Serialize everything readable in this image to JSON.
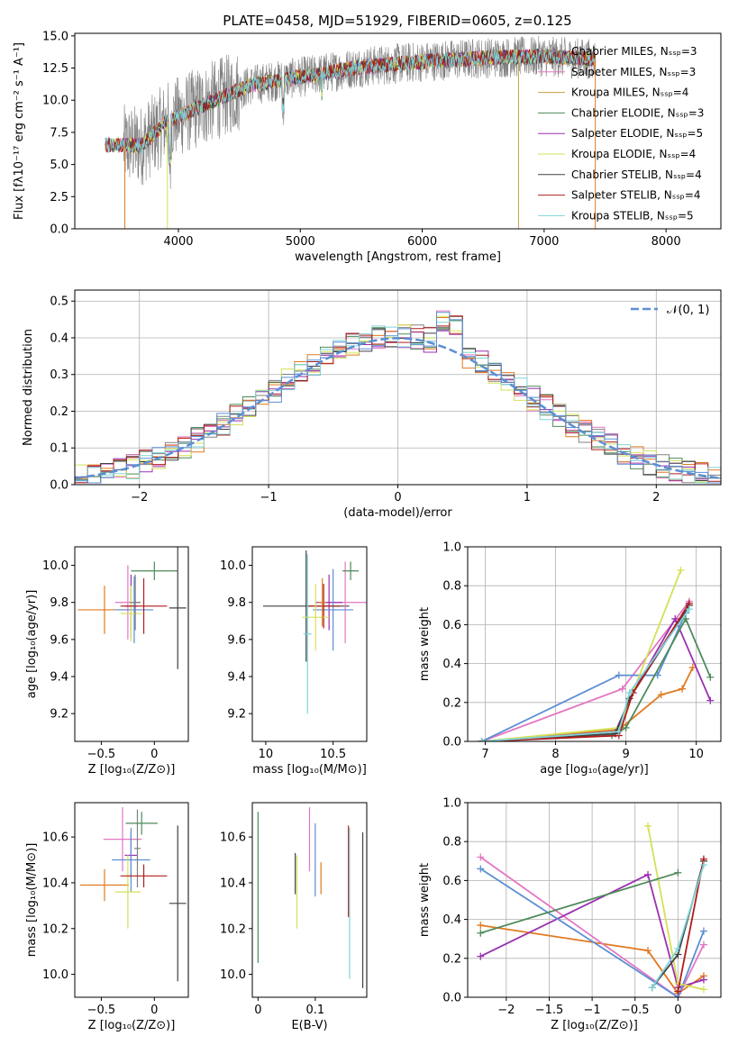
{
  "figure_title": "PLATE=0458, MJD=51929, FIBERID=0605, z=0.125",
  "chart_data": [
    {
      "type": "line",
      "panel": "spectrum",
      "xlabel": "wavelength [Angstrom, rest frame]",
      "ylabel": "Flux [fλ10⁻¹⁷ erg cm⁻² s⁻¹ A⁻¹]",
      "xlim": [
        3150,
        8450
      ],
      "ylim": [
        0,
        15.2
      ],
      "xticks": [
        4000,
        5000,
        6000,
        7000,
        8000
      ],
      "yticks": [
        0.0,
        2.5,
        5.0,
        7.5,
        10.0,
        12.5,
        15.0
      ],
      "legend_position": "right",
      "series": [
        {
          "name": "Chabrier MILES, Nₛₛₚ=3",
          "color": "#808080"
        },
        {
          "name": "Salpeter MILES, Nₛₛₚ=3",
          "color": "#e377c2"
        },
        {
          "name": "Kroupa MILES, Nₛₛₚ=4",
          "color": "#c8a040"
        },
        {
          "name": "Chabrier ELODIE, Nₛₛₚ=3",
          "color": "#4e8a5a"
        },
        {
          "name": "Salpeter ELODIE, Nₛₛₚ=5",
          "color": "#9b30b0"
        },
        {
          "name": "Kroupa ELODIE, Nₛₛₚ=4",
          "color": "#d4e157"
        },
        {
          "name": "Chabrier STELIB, Nₛₛₚ=4",
          "color": "#404040"
        },
        {
          "name": "Salpeter STELIB, Nₛₛₚ=4",
          "color": "#b01c1c"
        },
        {
          "name": "Kroupa STELIB, Nₛₛₚ=5",
          "color": "#80d4d8"
        }
      ],
      "continuum_points": [
        [
          3400,
          6.5
        ],
        [
          3700,
          6.5
        ],
        [
          3900,
          8.3
        ],
        [
          4300,
          10.0
        ],
        [
          4600,
          11.2
        ],
        [
          5000,
          11.8
        ],
        [
          5500,
          12.6
        ],
        [
          6000,
          13.0
        ],
        [
          6500,
          13.3
        ],
        [
          7000,
          13.4
        ],
        [
          7400,
          13.2
        ]
      ],
      "spectral_range": [
        3400,
        7420
      ]
    },
    {
      "type": "histogram",
      "panel": "residuals",
      "xlabel": "(data-model)/error",
      "ylabel": "Normed distribution",
      "xlim": [
        -2.5,
        2.5
      ],
      "ylim": [
        0,
        0.53
      ],
      "xticks": [
        -2,
        -1,
        0,
        1,
        2
      ],
      "yticks": [
        0.0,
        0.1,
        0.2,
        0.3,
        0.4,
        0.5
      ],
      "grid": true,
      "legend_position": "top-right",
      "reference_curve": {
        "name": "𝒩(0, 1)",
        "color": "#5b8fd4",
        "style": "dashed"
      },
      "bins": [
        -2.5,
        -2.4,
        -2.3,
        -2.2,
        -2.1,
        -2.0,
        -1.9,
        -1.8,
        -1.7,
        -1.6,
        -1.5,
        -1.4,
        -1.3,
        -1.2,
        -1.1,
        -1.0,
        -0.9,
        -0.8,
        -0.7,
        -0.6,
        -0.5,
        -0.4,
        -0.3,
        -0.2,
        -0.1,
        0.0,
        0.1,
        0.2,
        0.3,
        0.4,
        0.5,
        0.6,
        0.7,
        0.8,
        0.9,
        1.0,
        1.1,
        1.2,
        1.3,
        1.4,
        1.5,
        1.6,
        1.7,
        1.8,
        1.9,
        2.0,
        2.1,
        2.2,
        2.3,
        2.4,
        2.5
      ]
    },
    {
      "type": "scatter",
      "panel": "Z-age",
      "xlabel": "Z [log₁₀(Z/Z⊙)]",
      "ylabel": "age  [log₁₀(age/yr)]",
      "xlim": [
        -0.75,
        0.32
      ],
      "ylim": [
        9.05,
        10.1
      ],
      "xticks": [
        -0.5,
        0.0
      ],
      "yticks": [
        9.2,
        9.4,
        9.6,
        9.8,
        10.0
      ],
      "points": [
        {
          "x": -0.47,
          "y": 9.76,
          "xerr": 0.25,
          "yerr": 0.13,
          "color": "#e07a20"
        },
        {
          "x": -0.25,
          "y": 9.8,
          "xerr": 0.12,
          "yerr": 0.2,
          "color": "#e377c2"
        },
        {
          "x": -0.22,
          "y": 9.78,
          "xerr": 0.06,
          "yerr": 0.17,
          "color": "#9b30b0"
        },
        {
          "x": -0.19,
          "y": 9.76,
          "xerr": 0.18,
          "yerr": 0.18,
          "color": "#5b8fd4"
        },
        {
          "x": -0.22,
          "y": 9.74,
          "xerr": 0.1,
          "yerr": 0.15,
          "color": "#d4e157"
        },
        {
          "x": -0.18,
          "y": 9.8,
          "xerr": 0.05,
          "yerr": 0.15,
          "color": "#808080"
        },
        {
          "x": -0.1,
          "y": 9.78,
          "xerr": 0.22,
          "yerr": 0.15,
          "color": "#b01c1c"
        },
        {
          "x": 0.0,
          "y": 9.97,
          "xerr": 0.22,
          "yerr": 0.05,
          "color": "#4e8a5a"
        },
        {
          "x": 0.22,
          "y": 9.77,
          "xerr": 0.08,
          "yerr": 0.33,
          "color": "#404040"
        }
      ]
    },
    {
      "type": "scatter",
      "panel": "mass-age",
      "xlabel": "mass [log₁₀(M/M⊙)]",
      "ylabel": "",
      "xlim": [
        9.9,
        10.75
      ],
      "ylim": [
        9.05,
        10.1
      ],
      "xticks": [
        10.0,
        10.5
      ],
      "yticks": [
        9.2,
        9.4,
        9.6,
        9.8,
        10.0
      ],
      "points": [
        {
          "x": 10.3,
          "y": 9.78,
          "xerr": 0.32,
          "yerr": 0.3,
          "color": "#404040"
        },
        {
          "x": 10.59,
          "y": 9.8,
          "xerr": 0.16,
          "yerr": 0.22,
          "color": "#e377c2"
        },
        {
          "x": 10.47,
          "y": 9.8,
          "xerr": 0.1,
          "yerr": 0.15,
          "color": "#9b30b0"
        },
        {
          "x": 10.5,
          "y": 9.76,
          "xerr": 0.15,
          "yerr": 0.22,
          "color": "#5b8fd4"
        },
        {
          "x": 10.43,
          "y": 9.78,
          "xerr": 0.12,
          "yerr": 0.12,
          "color": "#b01c1c"
        },
        {
          "x": 10.37,
          "y": 9.72,
          "xerr": 0.1,
          "yerr": 0.18,
          "color": "#d4e157"
        },
        {
          "x": 10.42,
          "y": 9.8,
          "xerr": 0.03,
          "yerr": 0.13,
          "color": "#e07a20"
        },
        {
          "x": 10.63,
          "y": 9.97,
          "xerr": 0.06,
          "yerr": 0.05,
          "color": "#4e8a5a"
        },
        {
          "x": 10.31,
          "y": 9.63,
          "xerr": 0.03,
          "yerr": 0.43,
          "color": "#80d4d8"
        }
      ]
    },
    {
      "type": "line",
      "panel": "age-massweight",
      "xlabel": "age  [log₁₀(age/yr)]",
      "ylabel": "mass weight",
      "xlim": [
        6.75,
        10.35
      ],
      "ylim": [
        0,
        1.0
      ],
      "xticks": [
        7,
        8,
        9,
        10
      ],
      "yticks": [
        0.0,
        0.2,
        0.4,
        0.6,
        0.8,
        1.0
      ],
      "grid": true,
      "series": [
        {
          "color": "#e07a20",
          "x": [
            6.95,
            8.9,
            9.5,
            9.8,
            9.95
          ],
          "y": [
            0.0,
            0.06,
            0.24,
            0.27,
            0.38
          ]
        },
        {
          "color": "#e377c2",
          "x": [
            6.95,
            8.95,
            9.9
          ],
          "y": [
            0.0,
            0.27,
            0.72
          ]
        },
        {
          "color": "#9b30b0",
          "x": [
            6.95,
            8.85,
            9.1,
            9.7,
            10.2
          ],
          "y": [
            0.0,
            0.05,
            0.25,
            0.63,
            0.21
          ]
        },
        {
          "color": "#5b8fd4",
          "x": [
            6.95,
            8.9,
            9.45,
            9.85
          ],
          "y": [
            0.0,
            0.34,
            0.34,
            0.66
          ]
        },
        {
          "color": "#d4e157",
          "x": [
            6.95,
            8.9,
            9.78
          ],
          "y": [
            0.0,
            0.07,
            0.88
          ]
        },
        {
          "color": "#4e8a5a",
          "x": [
            6.95,
            8.8,
            9.0,
            9.85,
            10.2
          ],
          "y": [
            0.0,
            0.03,
            0.07,
            0.63,
            0.33
          ]
        },
        {
          "color": "#404040",
          "x": [
            6.95,
            8.85,
            9.05,
            9.9
          ],
          "y": [
            0.0,
            0.04,
            0.22,
            0.7
          ]
        },
        {
          "color": "#b01c1c",
          "x": [
            6.95,
            8.9,
            9.1,
            9.9
          ],
          "y": [
            0.0,
            0.03,
            0.25,
            0.71
          ]
        },
        {
          "color": "#80d4d8",
          "x": [
            6.95,
            8.9,
            9.05,
            9.9
          ],
          "y": [
            0.0,
            0.05,
            0.25,
            0.68
          ]
        }
      ]
    },
    {
      "type": "scatter",
      "panel": "Z-mass",
      "xlabel": "Z [log₁₀(Z/Z⊙)]",
      "ylabel": "mass [log₁₀(M/M⊙)]",
      "xlim": [
        -0.75,
        0.32
      ],
      "ylim": [
        9.9,
        10.75
      ],
      "xticks": [
        -0.5,
        0.0
      ],
      "yticks": [
        10.0,
        10.2,
        10.4,
        10.6
      ],
      "points": [
        {
          "x": -0.47,
          "y": 10.39,
          "xerr": 0.23,
          "yerr": 0.07,
          "color": "#e07a20"
        },
        {
          "x": -0.3,
          "y": 10.59,
          "xerr": 0.18,
          "yerr": 0.14,
          "color": "#e377c2"
        },
        {
          "x": -0.22,
          "y": 10.52,
          "xerr": 0.06,
          "yerr": 0.1,
          "color": "#9b30b0"
        },
        {
          "x": -0.22,
          "y": 10.5,
          "xerr": 0.18,
          "yerr": 0.14,
          "color": "#5b8fd4"
        },
        {
          "x": -0.25,
          "y": 10.36,
          "xerr": 0.12,
          "yerr": 0.16,
          "color": "#d4e157"
        },
        {
          "x": -0.16,
          "y": 10.55,
          "xerr": 0.03,
          "yerr": 0.17,
          "color": "#808080"
        },
        {
          "x": -0.1,
          "y": 10.43,
          "xerr": 0.22,
          "yerr": 0.05,
          "color": "#b01c1c"
        },
        {
          "x": -0.12,
          "y": 10.66,
          "xerr": 0.15,
          "yerr": 0.05,
          "color": "#4e8a5a"
        },
        {
          "x": 0.22,
          "y": 10.31,
          "xerr": 0.08,
          "yerr": 0.34,
          "color": "#404040"
        }
      ]
    },
    {
      "type": "scatter",
      "panel": "ebv-mass",
      "xlabel": "E(B-V)",
      "ylabel": "",
      "xlim": [
        -0.01,
        0.19
      ],
      "ylim": [
        9.9,
        10.75
      ],
      "xticks": [
        0.0,
        0.1
      ],
      "yticks": [
        10.0,
        10.2,
        10.4,
        10.6
      ],
      "points": [
        {
          "x": 0.0,
          "y": 10.38,
          "xerr": 0.0,
          "yerr": 0.33,
          "color": "#4e8a5a"
        },
        {
          "x": 0.065,
          "y": 10.44,
          "xerr": 0.0,
          "yerr": 0.09,
          "color": "#404040"
        },
        {
          "x": 0.068,
          "y": 10.36,
          "xerr": 0.0,
          "yerr": 0.16,
          "color": "#d4e157"
        },
        {
          "x": 0.09,
          "y": 10.59,
          "xerr": 0.0,
          "yerr": 0.14,
          "color": "#e377c2"
        },
        {
          "x": 0.1,
          "y": 10.5,
          "xerr": 0.0,
          "yerr": 0.16,
          "color": "#5b8fd4"
        },
        {
          "x": 0.11,
          "y": 10.42,
          "xerr": 0.0,
          "yerr": 0.07,
          "color": "#e07a20"
        },
        {
          "x": 0.158,
          "y": 10.45,
          "xerr": 0.0,
          "yerr": 0.2,
          "color": "#b01c1c"
        },
        {
          "x": 0.16,
          "y": 10.31,
          "xerr": 0.0,
          "yerr": 0.33,
          "color": "#80d4d8"
        },
        {
          "x": 0.183,
          "y": 10.28,
          "xerr": 0.0,
          "yerr": 0.34,
          "color": "#404040"
        }
      ]
    },
    {
      "type": "line",
      "panel": "Z-massweight",
      "xlabel": "Z [log₁₀(Z/Z⊙)]",
      "ylabel": "mass weight",
      "xlim": [
        -2.45,
        0.5
      ],
      "ylim": [
        0,
        1.0
      ],
      "xticks": [
        -2.0,
        -1.5,
        -1.0,
        -0.5,
        0.0
      ],
      "yticks": [
        0.0,
        0.2,
        0.4,
        0.6,
        0.8,
        1.0
      ],
      "grid": true,
      "series": [
        {
          "color": "#e07a20",
          "x": [
            -2.3,
            -0.35,
            0.0,
            0.3
          ],
          "y": [
            0.37,
            0.24,
            0.02,
            0.11
          ]
        },
        {
          "color": "#e377c2",
          "x": [
            -2.3,
            0.0,
            0.3
          ],
          "y": [
            0.72,
            0.0,
            0.27
          ]
        },
        {
          "color": "#9b30b0",
          "x": [
            -2.3,
            -0.35,
            0.0,
            0.3
          ],
          "y": [
            0.21,
            0.63,
            0.05,
            0.09
          ]
        },
        {
          "color": "#5b8fd4",
          "x": [
            -2.3,
            0.0,
            0.3
          ],
          "y": [
            0.66,
            0.0,
            0.34
          ]
        },
        {
          "color": "#d4e157",
          "x": [
            -0.35,
            0.0,
            0.3
          ],
          "y": [
            0.88,
            0.07,
            0.04
          ]
        },
        {
          "color": "#4e8a5a",
          "x": [
            -2.3,
            0.0
          ],
          "y": [
            0.33,
            0.64
          ]
        },
        {
          "color": "#404040",
          "x": [
            -0.3,
            0.0,
            0.3
          ],
          "y": [
            0.05,
            0.22,
            0.7
          ]
        },
        {
          "color": "#b01c1c",
          "x": [
            0.0,
            0.3
          ],
          "y": [
            0.03,
            0.71
          ]
        },
        {
          "color": "#80d4d8",
          "x": [
            -0.3,
            0.0,
            0.3
          ],
          "y": [
            0.05,
            0.25,
            0.68
          ]
        }
      ]
    }
  ]
}
